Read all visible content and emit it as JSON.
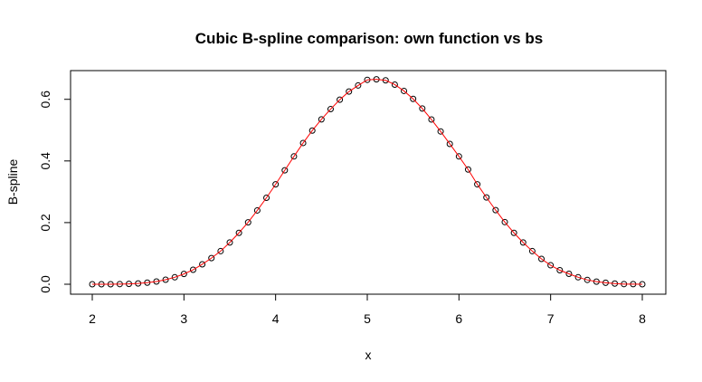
{
  "chart_data": {
    "type": "line",
    "title": "Cubic B-spline comparison: own function vs bs",
    "xlabel": "x",
    "ylabel": "B-spline",
    "xlim": [
      2,
      8
    ],
    "ylim": [
      0,
      0.6667
    ],
    "x_ticks": [
      2,
      3,
      4,
      5,
      6,
      7,
      8
    ],
    "x_tick_labels": [
      "2",
      "3",
      "4",
      "5",
      "6",
      "7",
      "8"
    ],
    "y_ticks": [
      0.0,
      0.2,
      0.4,
      0.6
    ],
    "y_tick_labels": [
      "0.0",
      "0.2",
      "0.4",
      "0.6"
    ],
    "grid": false,
    "legend": "none",
    "series": [
      {
        "style": "points",
        "marker": "open-circle",
        "color": "#000000",
        "x": [
          2.0,
          2.1,
          2.2,
          2.3,
          2.4,
          2.5,
          2.6,
          2.7,
          2.8,
          2.9,
          3.0,
          3.1,
          3.2,
          3.3,
          3.4,
          3.5,
          3.6,
          3.7,
          3.8,
          3.9,
          4.0,
          4.1,
          4.2,
          4.3,
          4.4,
          4.5,
          4.6,
          4.7,
          4.8,
          4.9,
          5.0,
          5.1,
          5.2,
          5.3,
          5.4,
          5.5,
          5.6,
          5.7,
          5.8,
          5.9,
          6.0,
          6.1,
          6.2,
          6.3,
          6.4,
          6.5,
          6.6,
          6.7,
          6.8,
          6.9,
          7.0,
          7.1,
          7.2,
          7.3,
          7.4,
          7.5,
          7.6,
          7.7,
          7.8,
          7.9,
          8.0
        ],
        "y": [
          0.0,
          0.0,
          0.0,
          0.0005,
          0.0011,
          0.0026,
          0.0051,
          0.0088,
          0.0146,
          0.0226,
          0.0334,
          0.0469,
          0.0647,
          0.0848,
          0.1074,
          0.1354,
          0.1667,
          0.2009,
          0.2395,
          0.2805,
          0.3241,
          0.3697,
          0.4147,
          0.4583,
          0.4986,
          0.535,
          0.5682,
          0.5988,
          0.6251,
          0.6449,
          0.6632,
          0.6649,
          0.6616,
          0.6477,
          0.6272,
          0.6013,
          0.5701,
          0.5345,
          0.4958,
          0.4553,
          0.4147,
          0.3723,
          0.3243,
          0.2815,
          0.2405,
          0.2017,
          0.1667,
          0.1354,
          0.1074,
          0.0823,
          0.0615,
          0.0455,
          0.0338,
          0.0226,
          0.0141,
          0.0085,
          0.0048,
          0.0023,
          0.0005,
          0.0003,
          0.0
        ]
      },
      {
        "style": "line",
        "color": "#ff0000",
        "x": [
          2.0,
          2.1,
          2.2,
          2.3,
          2.4,
          2.5,
          2.6,
          2.7,
          2.8,
          2.9,
          3.0,
          3.1,
          3.2,
          3.3,
          3.4,
          3.5,
          3.6,
          3.7,
          3.8,
          3.9,
          4.0,
          4.1,
          4.2,
          4.3,
          4.4,
          4.5,
          4.6,
          4.7,
          4.8,
          4.9,
          5.0,
          5.1,
          5.2,
          5.3,
          5.4,
          5.5,
          5.6,
          5.7,
          5.8,
          5.9,
          6.0,
          6.1,
          6.2,
          6.3,
          6.4,
          6.5,
          6.6,
          6.7,
          6.8,
          6.9,
          7.0,
          7.1,
          7.2,
          7.3,
          7.4,
          7.5,
          7.6,
          7.7,
          7.8,
          7.9,
          8.0
        ],
        "y": [
          0.0,
          0.0,
          0.0,
          0.0005,
          0.0011,
          0.0026,
          0.0051,
          0.0088,
          0.0146,
          0.0226,
          0.0334,
          0.0469,
          0.0647,
          0.0848,
          0.1074,
          0.1354,
          0.1667,
          0.2009,
          0.2395,
          0.2805,
          0.3241,
          0.3697,
          0.4147,
          0.4583,
          0.4986,
          0.535,
          0.5682,
          0.5988,
          0.6251,
          0.6449,
          0.6632,
          0.6649,
          0.6616,
          0.6477,
          0.6272,
          0.6013,
          0.5701,
          0.5345,
          0.4958,
          0.4553,
          0.4147,
          0.3723,
          0.3243,
          0.2815,
          0.2405,
          0.2017,
          0.1667,
          0.1354,
          0.1074,
          0.0823,
          0.0615,
          0.0455,
          0.0338,
          0.0226,
          0.0141,
          0.0085,
          0.0048,
          0.0023,
          0.0005,
          0.0003,
          0.0
        ]
      }
    ]
  }
}
